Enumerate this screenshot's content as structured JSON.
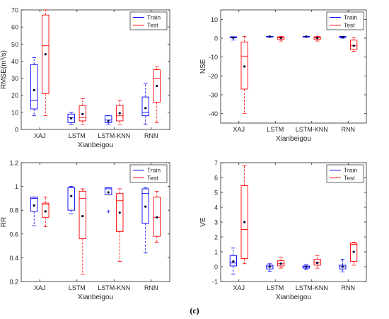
{
  "figure": {
    "panel_label": "(c)"
  },
  "colors": {
    "train": "#0000ff",
    "test": "#ff0000",
    "axis": "#262626",
    "grid": "#d9d9d9"
  },
  "chart_data": [
    {
      "type": "box",
      "xlabel": "Xianbeigou",
      "ylabel": "RMSE(m³/s)",
      "ylim": [
        0,
        70
      ],
      "yticks": [
        0,
        10,
        20,
        30,
        40,
        50,
        60,
        70
      ],
      "categories": [
        "XAJ",
        "LSTM",
        "LSTM-KNN",
        "RNN"
      ],
      "legend_position": "top-right",
      "series": [
        {
          "name": "Train",
          "boxes": [
            {
              "whisker_low": 8,
              "q1": 12,
              "median": 17,
              "q3": 38,
              "whisker_high": 42,
              "mean": 23,
              "outliers": []
            },
            {
              "whisker_low": 3,
              "q1": 4,
              "median": 7,
              "q3": 9,
              "whisker_high": 10,
              "mean": 6.5,
              "outliers": []
            },
            {
              "whisker_low": 3,
              "q1": 4,
              "median": 5.5,
              "q3": 8,
              "whisker_high": 8,
              "mean": 5,
              "outliers": []
            },
            {
              "whisker_low": 3,
              "q1": 8,
              "median": 10,
              "q3": 19,
              "whisker_high": 27,
              "mean": 12.5,
              "outliers": []
            }
          ]
        },
        {
          "name": "Test",
          "boxes": [
            {
              "whisker_low": 8,
              "q1": 21,
              "median": 49,
              "q3": 67,
              "whisker_high": 70,
              "mean": 44,
              "outliers": []
            },
            {
              "whisker_low": 3,
              "q1": 5,
              "median": 7,
              "q3": 14,
              "whisker_high": 18,
              "mean": 9,
              "outliers": []
            },
            {
              "whisker_low": 3,
              "q1": 5,
              "median": 8,
              "q3": 14,
              "whisker_high": 17,
              "mean": 9.5,
              "outliers": []
            },
            {
              "whisker_low": 4,
              "q1": 16,
              "median": 30,
              "q3": 35,
              "whisker_high": 37,
              "mean": 25.5,
              "outliers": []
            }
          ]
        }
      ]
    },
    {
      "type": "box",
      "xlabel": "Xianbeigou",
      "ylabel": "NSE",
      "ylim": [
        -45,
        15
      ],
      "yticks": [
        -40,
        -30,
        -20,
        -10,
        0,
        10
      ],
      "categories": [
        "XAJ",
        "LSTM",
        "LSTM-KNN",
        "RNN"
      ],
      "legend_position": "top-right",
      "series": [
        {
          "name": "Train",
          "boxes": [
            {
              "whisker_low": -1,
              "q1": 0.2,
              "median": 0.5,
              "q3": 0.7,
              "whisker_high": 0.8,
              "mean": 0.3,
              "outliers": []
            },
            {
              "whisker_low": 0.5,
              "q1": 0.7,
              "median": 0.9,
              "q3": 0.95,
              "whisker_high": 1,
              "mean": 0.85,
              "outliers": []
            },
            {
              "whisker_low": 0.5,
              "q1": 0.75,
              "median": 0.9,
              "q3": 0.95,
              "whisker_high": 1,
              "mean": 0.85,
              "outliers": []
            },
            {
              "whisker_low": 0,
              "q1": 0.4,
              "median": 0.8,
              "q3": 0.9,
              "whisker_high": 1,
              "mean": 0.6,
              "outliers": []
            }
          ]
        },
        {
          "name": "Test",
          "boxes": [
            {
              "whisker_low": -40,
              "q1": -27,
              "median": -9.5,
              "q3": -2,
              "whisker_high": 1,
              "mean": -15,
              "outliers": []
            },
            {
              "whisker_low": -1.5,
              "q1": -0.5,
              "median": 0.3,
              "q3": 0.7,
              "whisker_high": 1,
              "mean": 0.2,
              "outliers": []
            },
            {
              "whisker_low": -1.5,
              "q1": -0.5,
              "median": 0.3,
              "q3": 0.7,
              "whisker_high": 1,
              "mean": 0.2,
              "outliers": []
            },
            {
              "whisker_low": -7,
              "q1": -6,
              "median": -4,
              "q3": -1,
              "whisker_high": 0.5,
              "mean": -4,
              "outliers": []
            }
          ]
        }
      ]
    },
    {
      "type": "box",
      "xlabel": "Xianbeigou",
      "ylabel": "RR",
      "ylim": [
        0.2,
        1.2
      ],
      "yticks": [
        0.2,
        0.4,
        0.6,
        0.8,
        1,
        1.2
      ],
      "categories": [
        "XAJ",
        "LSTM",
        "LSTM-KNN",
        "RNN"
      ],
      "legend_position": "top-right",
      "series": [
        {
          "name": "Train",
          "boxes": [
            {
              "whisker_low": 0.67,
              "q1": 0.79,
              "median": 0.9,
              "q3": 0.91,
              "whisker_high": 0.91,
              "mean": 0.84,
              "outliers": []
            },
            {
              "whisker_low": 0.77,
              "q1": 0.8,
              "median": 0.99,
              "q3": 0.99,
              "whisker_high": 1.0,
              "mean": 0.92,
              "outliers": []
            },
            {
              "whisker_low": 0.93,
              "q1": 0.93,
              "median": 0.98,
              "q3": 0.99,
              "whisker_high": 0.99,
              "mean": 0.95,
              "outliers": [
                0.79
              ]
            },
            {
              "whisker_low": 0.44,
              "q1": 0.69,
              "median": 0.94,
              "q3": 0.98,
              "whisker_high": 0.99,
              "mean": 0.83,
              "outliers": []
            }
          ]
        },
        {
          "name": "Test",
          "boxes": [
            {
              "whisker_low": 0.66,
              "q1": 0.74,
              "median": 0.85,
              "q3": 0.86,
              "whisker_high": 0.91,
              "mean": 0.79,
              "outliers": []
            },
            {
              "whisker_low": 0.26,
              "q1": 0.56,
              "median": 0.9,
              "q3": 0.96,
              "whisker_high": 0.98,
              "mean": 0.75,
              "outliers": []
            },
            {
              "whisker_low": 0.37,
              "q1": 0.62,
              "median": 0.88,
              "q3": 0.94,
              "whisker_high": 0.98,
              "mean": 0.78,
              "outliers": []
            },
            {
              "whisker_low": 0.53,
              "q1": 0.58,
              "median": 0.74,
              "q3": 0.91,
              "whisker_high": 0.96,
              "mean": 0.74,
              "outliers": []
            }
          ]
        }
      ]
    },
    {
      "type": "box",
      "xlabel": "Xianbeigou",
      "ylabel": "VE",
      "ylim": [
        -1,
        7
      ],
      "yticks": [
        -1,
        0,
        1,
        2,
        3,
        4,
        5,
        6,
        7
      ],
      "categories": [
        "XAJ",
        "LSTM",
        "LSTM-KNN",
        "RNN"
      ],
      "legend_position": "top-right",
      "series": [
        {
          "name": "Train",
          "boxes": [
            {
              "whisker_low": -0.5,
              "q1": 0.05,
              "median": 0.25,
              "q3": 0.75,
              "whisker_high": 1.25,
              "mean": 0.35,
              "outliers": []
            },
            {
              "whisker_low": -0.3,
              "q1": -0.15,
              "median": 0.0,
              "q3": 0.1,
              "whisker_high": 0.2,
              "mean": 0.0,
              "outliers": []
            },
            {
              "whisker_low": -0.2,
              "q1": -0.1,
              "median": 0.0,
              "q3": 0.05,
              "whisker_high": 0.15,
              "mean": 0.0,
              "outliers": []
            },
            {
              "whisker_low": -0.35,
              "q1": -0.15,
              "median": 0.0,
              "q3": 0.1,
              "whisker_high": 0.5,
              "mean": 0.0,
              "outliers": []
            }
          ]
        },
        {
          "name": "Test",
          "boxes": [
            {
              "whisker_low": 0.2,
              "q1": 0.55,
              "median": 2.5,
              "q3": 5.45,
              "whisker_high": 6.8,
              "mean": 3.0,
              "outliers": []
            },
            {
              "whisker_low": -0.1,
              "q1": 0.05,
              "median": 0.2,
              "q3": 0.4,
              "whisker_high": 0.65,
              "mean": 0.2,
              "outliers": []
            },
            {
              "whisker_low": -0.1,
              "q1": 0.1,
              "median": 0.3,
              "q3": 0.5,
              "whisker_high": 0.75,
              "mean": 0.25,
              "outliers": []
            },
            {
              "whisker_low": 0.1,
              "q1": 0.35,
              "median": 1.5,
              "q3": 1.6,
              "whisker_high": 1.65,
              "mean": 1.0,
              "outliers": []
            }
          ]
        }
      ]
    }
  ]
}
